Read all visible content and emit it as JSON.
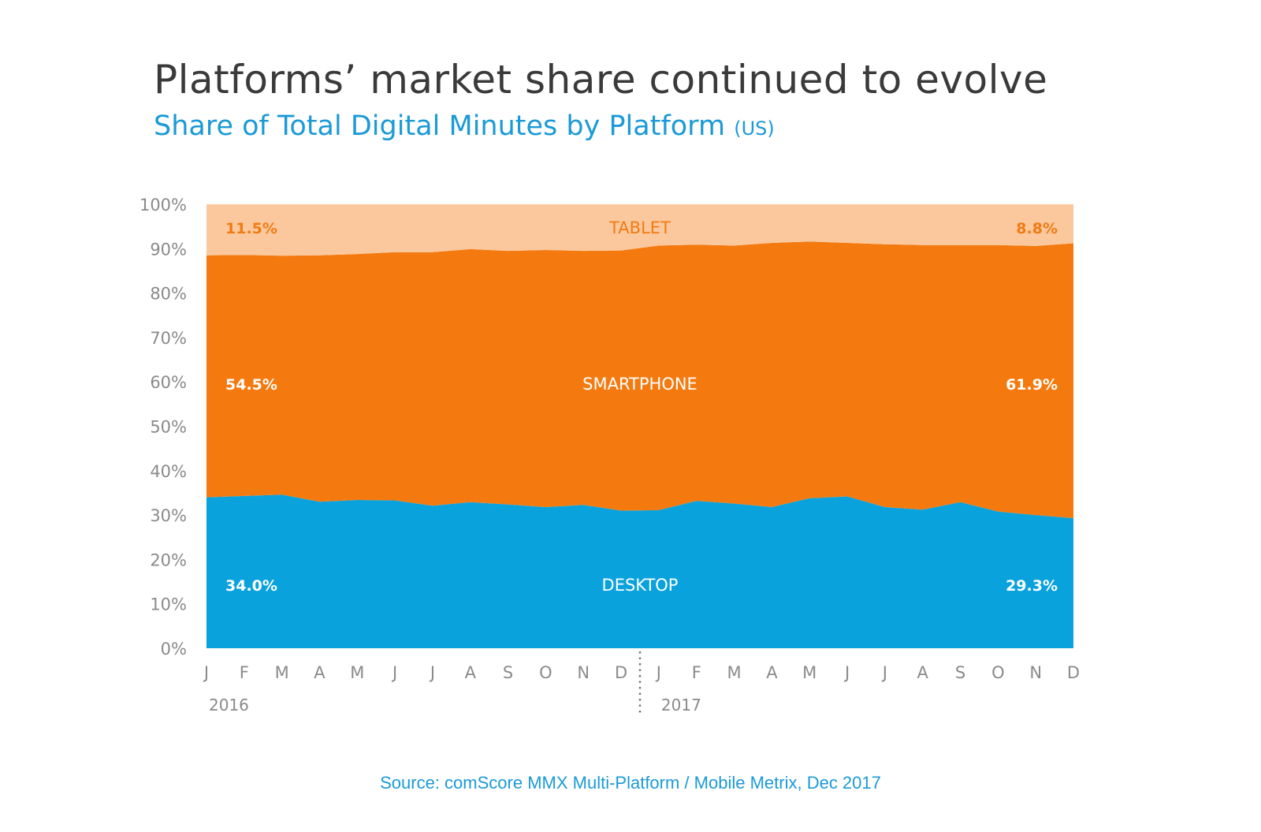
{
  "title": "Platforms’ market share continued to evolve",
  "subtitle": "Share of Total Digital Minutes by Platform",
  "subtitle_suffix": "(US)",
  "source": "Source: comScore MMX Multi-Platform / Mobile Metrix, Dec 2017",
  "colors": {
    "desktop": "#0aa2dd",
    "smartphone": "#f47a0f",
    "tablet": "#fbc89e",
    "tablet_label": "#f07b12",
    "title": "#3a3a3a",
    "subtitle": "#1b9ad6",
    "axis_text": "#8a8a8a"
  },
  "chart_data": {
    "type": "area",
    "stacked": true,
    "ylim": [
      0,
      100
    ],
    "y_ticks": [
      "0%",
      "10%",
      "20%",
      "30%",
      "40%",
      "50%",
      "60%",
      "70%",
      "80%",
      "90%",
      "100%"
    ],
    "x": [
      "J",
      "F",
      "M",
      "A",
      "M",
      "J",
      "J",
      "A",
      "S",
      "O",
      "N",
      "D",
      "J",
      "F",
      "M",
      "A",
      "M",
      "J",
      "J",
      "A",
      "S",
      "O",
      "N",
      "D"
    ],
    "years": [
      {
        "label": "2016",
        "start_index": 0
      },
      {
        "label": "2017",
        "start_index": 12
      }
    ],
    "series": [
      {
        "name": "DESKTOP",
        "values": [
          34.0,
          34.3,
          34.6,
          33.0,
          33.4,
          33.3,
          32.1,
          32.9,
          32.4,
          31.8,
          32.3,
          31.0,
          31.1,
          33.2,
          32.6,
          31.8,
          33.8,
          34.2,
          31.8,
          31.2,
          32.9,
          30.8,
          30.0,
          29.3
        ]
      },
      {
        "name": "SMARTPHONE",
        "values": [
          54.5,
          54.3,
          53.8,
          55.5,
          55.4,
          55.9,
          57.1,
          57.0,
          57.1,
          57.9,
          57.2,
          58.6,
          59.6,
          57.7,
          58.1,
          59.5,
          57.8,
          57.1,
          59.2,
          59.6,
          57.9,
          60.0,
          60.6,
          61.9
        ]
      },
      {
        "name": "TABLET",
        "values": [
          11.5,
          11.4,
          11.6,
          11.5,
          11.2,
          10.8,
          10.8,
          10.1,
          10.5,
          10.3,
          10.5,
          10.4,
          9.3,
          9.1,
          9.3,
          8.7,
          8.4,
          8.7,
          9.0,
          9.2,
          9.2,
          9.2,
          9.4,
          8.8
        ]
      }
    ],
    "annotations": [
      {
        "series": "TABLET",
        "start": "11.5%",
        "end": "8.8%"
      },
      {
        "series": "SMARTPHONE",
        "start": "54.5%",
        "end": "61.9%"
      },
      {
        "series": "DESKTOP",
        "start": "34.0%",
        "end": "29.3%"
      }
    ]
  }
}
